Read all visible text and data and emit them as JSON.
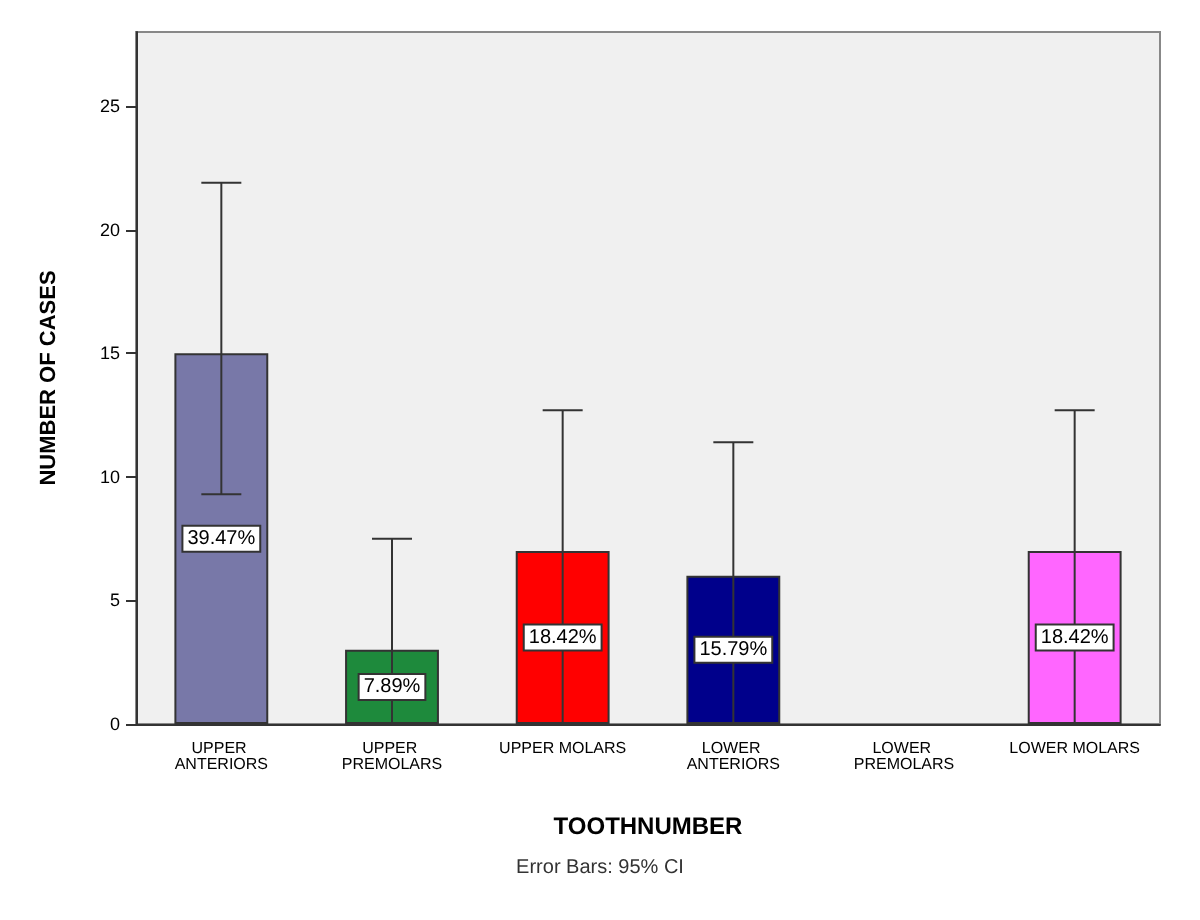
{
  "chart_data": {
    "type": "bar",
    "xlabel": "TOOTHNUMBER",
    "ylabel": "NUMBER OF CASES",
    "categories": [
      "UPPER ANTERIORS",
      "UPPER PREMOLARS",
      "UPPER MOLARS",
      "LOWER ANTERIORS",
      "LOWER PREMOLARS",
      "LOWER MOLARS"
    ],
    "values": [
      15,
      3,
      7,
      6,
      0,
      7
    ],
    "colors": [
      "#7878a8",
      "#1e8a3c",
      "#ff0000",
      "#00008b",
      null,
      "#ff66ff"
    ],
    "errors": [
      [
        9.3,
        21.9
      ],
      [
        0,
        7.5
      ],
      [
        0,
        12.7
      ],
      [
        0,
        11.4
      ],
      null,
      [
        0,
        12.7
      ]
    ],
    "ylim": [
      0,
      28
    ],
    "yticks": [
      0,
      5,
      10,
      15,
      20,
      25
    ],
    "grid": false,
    "annotations": [
      "Error Bars: 95% CI",
      {
        "text": "39.47%",
        "x": "UPPER ANTERIORS",
        "y": 7.5
      },
      {
        "text": "7.89%",
        "x": "UPPER PREMOLARS",
        "y": 1.5
      },
      {
        "text": "18.42%",
        "x": "UPPER MOLARS",
        "y": 3.5
      },
      {
        "text": "15.79%",
        "x": "LOWER ANTERIORS",
        "y": 3
      },
      {
        "text": "18.42%",
        "x": "LOWER MOLARS",
        "y": 3.5
      }
    ]
  }
}
